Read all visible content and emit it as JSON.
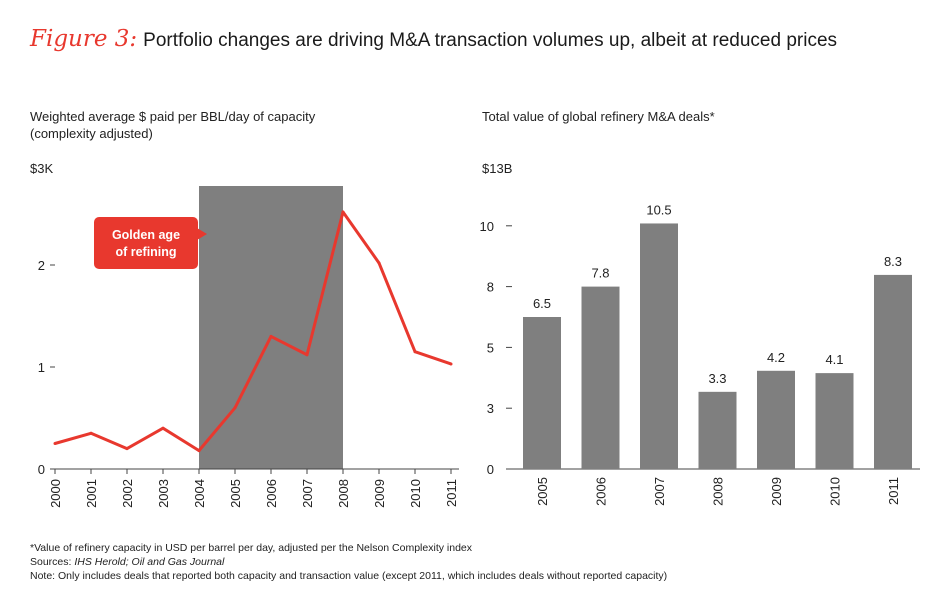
{
  "figure": {
    "label": "Figure 3:",
    "title": "Portfolio changes are driving M&A transaction volumes up, albeit at reduced prices"
  },
  "chart_data": [
    {
      "type": "line",
      "title": "Weighted average $ paid per BBL/day of capacity (complexity adjusted)",
      "subtitle_line1": "Weighted average $ paid per BBL/day of capacity",
      "subtitle_line2": "(complexity adjusted)",
      "unit_label": "$3K",
      "x": [
        "2000",
        "2001",
        "2002",
        "2003",
        "2004",
        "2005",
        "2006",
        "2007",
        "2008",
        "2009",
        "2010",
        "2011"
      ],
      "y_ticks": [
        "0",
        "1",
        "2"
      ],
      "ylim": [
        0,
        3
      ],
      "series": [
        {
          "values": [
            0.25,
            0.35,
            0.2,
            0.4,
            0.18,
            0.6,
            1.3,
            1.12,
            2.52,
            2.02,
            1.15,
            1.03
          ],
          "color": "#e8382e"
        }
      ],
      "shaded_region": {
        "from": "2004",
        "to": "2008",
        "color": "#7f7f7f"
      },
      "annotation": {
        "line1": "Golden age",
        "line2": "of refining",
        "color": "#e8382e"
      },
      "grid": false
    },
    {
      "type": "bar",
      "title": "Total value of global refinery M&A deals*",
      "unit_label": "$13B",
      "categories": [
        "2005",
        "2006",
        "2007",
        "2008",
        "2009",
        "2010",
        "2011"
      ],
      "values": [
        6.5,
        7.8,
        10.5,
        3.3,
        4.2,
        4.1,
        8.3
      ],
      "data_labels": [
        "6.5",
        "7.8",
        "10.5",
        "3.3",
        "4.2",
        "4.1",
        "8.3"
      ],
      "y_ticks": [
        "0",
        "3",
        "5",
        "8",
        "10"
      ],
      "y_tick_values": [
        0,
        2.6,
        5.2,
        7.8,
        10.4
      ],
      "ylim": [
        0,
        13
      ],
      "bar_color": "#7f7f7f",
      "grid": false
    }
  ],
  "notes": {
    "footnote": "*Value of refinery capacity in USD per barrel per day, adjusted per the Nelson Complexity index",
    "sources_prefix": "Sources: ",
    "sources_italic": "IHS Herold; Oil and Gas Journal",
    "note": "Note: Only includes deals that reported both capacity and transaction value (except 2011, which includes deals without reported capacity)"
  }
}
